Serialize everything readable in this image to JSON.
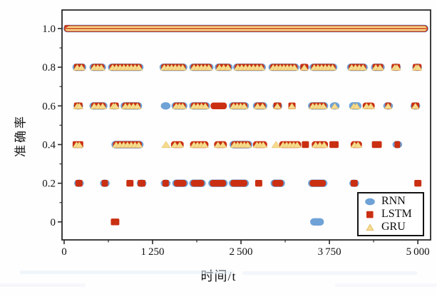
{
  "figure": {
    "x_axis": {
      "title": "时间/t",
      "tick_labels": [
        "0",
        "1 250",
        "2 500",
        "3 750",
        "5 000"
      ],
      "tick_values": [
        0,
        1250,
        2500,
        3750,
        5000
      ],
      "minor_tick_values": [
        625,
        1875,
        3125,
        4375
      ],
      "range": [
        -30,
        5180
      ]
    },
    "y_axis": {
      "title": "准确率",
      "tick_labels": [
        "0",
        "0.2",
        "0.4",
        "0.6",
        "0.8",
        "1.0"
      ],
      "tick_values": [
        0,
        0.2,
        0.4,
        0.6,
        0.8,
        1.0
      ],
      "minor_tick_values": [
        0.1,
        0.3,
        0.5,
        0.7,
        0.9
      ],
      "range": [
        -0.093,
        1.096
      ]
    },
    "legend": {
      "position": "lower right",
      "items": [
        {
          "label": "RNN",
          "marker": "circle-icon",
          "color": "#6fa2d6"
        },
        {
          "label": "LSTM",
          "marker": "square-icon",
          "color": "#ca2f12"
        },
        {
          "label": "GRU",
          "marker": "triangle-icon",
          "color": "#f6dc8c"
        }
      ]
    }
  },
  "chart_data": {
    "type": "scatter",
    "title": "",
    "xlabel": "时间/t",
    "ylabel": "准确率",
    "xlim": [
      -30,
      5180
    ],
    "ylim": [
      -0.093,
      1.096
    ],
    "grid": false,
    "legend_position": "lower right",
    "series_names": [
      "RNN",
      "LSTM",
      "GRU"
    ],
    "colors": {
      "RNN": "#6fa2d6",
      "LSTM": "#ca2f12",
      "GRU": "#f6dc8c",
      "GRU_edge": "#d9af5c",
      "axis": "#2a2a2a"
    },
    "series_key": {
      "R": "RNN (blue circle)",
      "L": "LSTM (red square)",
      "G": "GRU (yellow triangle)"
    },
    "band": {
      "y": 1.0,
      "span": [
        0,
        5140
      ],
      "s": "RLG",
      "note": "continuous overlapping markers of all three models at accuracy 1.0"
    },
    "clusters": [
      {
        "y": 0.8,
        "span": [
          130,
          300
        ],
        "s": "RLG"
      },
      {
        "y": 0.8,
        "span": [
          370,
          580
        ],
        "s": "RLG"
      },
      {
        "y": 0.8,
        "span": [
          630,
          1110
        ],
        "s": "RLG"
      },
      {
        "y": 0.8,
        "span": [
          1360,
          1730
        ],
        "s": "RLG"
      },
      {
        "y": 0.8,
        "span": [
          1780,
          2100
        ],
        "s": "RLG"
      },
      {
        "y": 0.8,
        "span": [
          2140,
          2370
        ],
        "s": "RLG"
      },
      {
        "y": 0.8,
        "span": [
          2400,
          2840
        ],
        "s": "RLG"
      },
      {
        "y": 0.8,
        "span": [
          2900,
          3310
        ],
        "s": "RLG"
      },
      {
        "y": 0.8,
        "span": [
          3330,
          3460
        ],
        "s": "RLG"
      },
      {
        "y": 0.8,
        "span": [
          3480,
          3850
        ],
        "s": "RLG"
      },
      {
        "y": 0.8,
        "span": [
          4010,
          4280
        ],
        "s": "RLG"
      },
      {
        "y": 0.8,
        "span": [
          4350,
          4520
        ],
        "s": "RLG"
      },
      {
        "y": 0.8,
        "span": [
          4620,
          4760
        ],
        "s": "RLG"
      },
      {
        "y": 0.8,
        "span": [
          4920,
          5060
        ],
        "s": "RLG"
      },
      {
        "y": 0.6,
        "span": [
          130,
          270
        ],
        "s": "RLG"
      },
      {
        "y": 0.6,
        "span": [
          370,
          600
        ],
        "s": "RLG"
      },
      {
        "y": 0.6,
        "span": [
          640,
          780
        ],
        "s": "RLG"
      },
      {
        "y": 0.6,
        "span": [
          810,
          1090
        ],
        "s": "RLG"
      },
      {
        "y": 0.6,
        "span": [
          1380,
          1490
        ],
        "s": "R"
      },
      {
        "y": 0.6,
        "span": [
          1530,
          1730
        ],
        "s": "RLG"
      },
      {
        "y": 0.6,
        "span": [
          1780,
          2050
        ],
        "s": "RLG"
      },
      {
        "y": 0.6,
        "span": [
          2070,
          2300
        ],
        "s": "L"
      },
      {
        "y": 0.6,
        "span": [
          2340,
          2600
        ],
        "s": "RLG"
      },
      {
        "y": 0.6,
        "span": [
          2680,
          2860
        ],
        "s": "RLG"
      },
      {
        "y": 0.6,
        "span": [
          2950,
          3080
        ],
        "s": "RLG"
      },
      {
        "y": 0.6,
        "span": [
          3170,
          3270
        ],
        "s": "LG"
      },
      {
        "y": 0.6,
        "span": [
          3460,
          3720
        ],
        "s": "RLG"
      },
      {
        "y": 0.6,
        "span": [
          3760,
          3890
        ],
        "s": "RG"
      },
      {
        "y": 0.6,
        "span": [
          4040,
          4190
        ],
        "s": "RG"
      },
      {
        "y": 0.6,
        "span": [
          4220,
          4390
        ],
        "s": "LG"
      },
      {
        "y": 0.6,
        "span": [
          4530,
          4630
        ],
        "s": "RLG"
      },
      {
        "y": 0.6,
        "span": [
          4900,
          5030
        ],
        "s": "RLG"
      },
      {
        "y": 0.4,
        "span": [
          120,
          270
        ],
        "s": "LG"
      },
      {
        "y": 0.4,
        "span": [
          680,
          1110
        ],
        "s": "RLG"
      },
      {
        "y": 0.4,
        "span": [
          1390,
          1490
        ],
        "s": "G"
      },
      {
        "y": 0.4,
        "span": [
          1510,
          1690
        ],
        "s": "LG"
      },
      {
        "y": 0.4,
        "span": [
          1780,
          2040
        ],
        "s": "LG"
      },
      {
        "y": 0.4,
        "span": [
          2120,
          2300
        ],
        "s": "LG"
      },
      {
        "y": 0.4,
        "span": [
          2350,
          2650
        ],
        "s": "RLG"
      },
      {
        "y": 0.4,
        "span": [
          2670,
          2870
        ],
        "s": "LG"
      },
      {
        "y": 0.4,
        "span": [
          2950,
          3040
        ],
        "s": "G"
      },
      {
        "y": 0.4,
        "span": [
          3040,
          3350
        ],
        "s": "LG"
      },
      {
        "y": 0.4,
        "span": [
          3360,
          3450
        ],
        "s": "L"
      },
      {
        "y": 0.4,
        "span": [
          3500,
          3730
        ],
        "s": "LG"
      },
      {
        "y": 0.4,
        "span": [
          3750,
          3880
        ],
        "s": "L"
      },
      {
        "y": 0.4,
        "span": [
          4050,
          4210
        ],
        "s": "LG"
      },
      {
        "y": 0.4,
        "span": [
          4350,
          4490
        ],
        "s": "L"
      },
      {
        "y": 0.4,
        "span": [
          4660,
          4760
        ],
        "s": "RL"
      },
      {
        "y": 0.2,
        "span": [
          150,
          270
        ],
        "s": "RL"
      },
      {
        "y": 0.2,
        "span": [
          520,
          630
        ],
        "s": "RL"
      },
      {
        "y": 0.2,
        "span": [
          880,
          980
        ],
        "s": "L"
      },
      {
        "y": 0.2,
        "span": [
          1030,
          1160
        ],
        "s": "RL"
      },
      {
        "y": 0.2,
        "span": [
          1380,
          1490
        ],
        "s": "RL"
      },
      {
        "y": 0.2,
        "span": [
          1540,
          1740
        ],
        "s": "RL"
      },
      {
        "y": 0.2,
        "span": [
          1780,
          1990
        ],
        "s": "RL"
      },
      {
        "y": 0.2,
        "span": [
          2050,
          2300
        ],
        "s": "RL"
      },
      {
        "y": 0.2,
        "span": [
          2340,
          2600
        ],
        "s": "RL"
      },
      {
        "y": 0.2,
        "span": [
          2700,
          2780
        ],
        "s": "L"
      },
      {
        "y": 0.2,
        "span": [
          2930,
          3110
        ],
        "s": "RL"
      },
      {
        "y": 0.2,
        "span": [
          3460,
          3710
        ],
        "s": "RL"
      },
      {
        "y": 0.2,
        "span": [
          4040,
          4160
        ],
        "s": "RL"
      },
      {
        "y": 0.2,
        "span": [
          4950,
          5050
        ],
        "s": "L"
      },
      {
        "y": 0.0,
        "span": [
          660,
          780
        ],
        "s": "L"
      },
      {
        "y": 0.0,
        "span": [
          3490,
          3660
        ],
        "s": "R"
      }
    ]
  }
}
